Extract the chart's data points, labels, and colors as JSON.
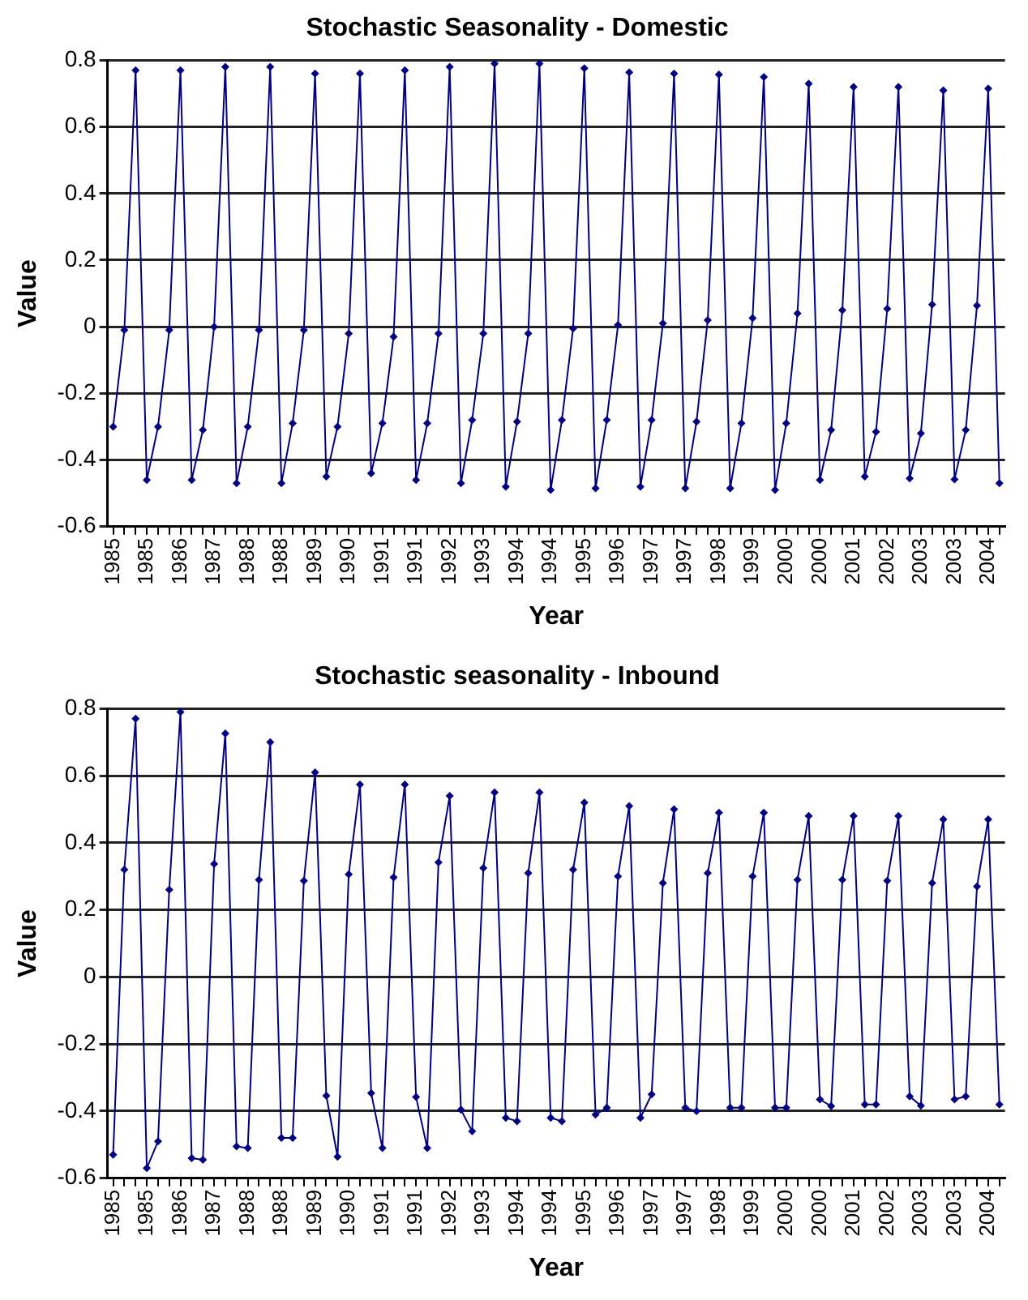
{
  "chart_data": [
    {
      "type": "line",
      "title": "Stochastic Seasonality - Domestic",
      "xlabel": "Year",
      "ylabel": "Value",
      "categories": [
        "1985",
        null,
        null,
        "1985",
        null,
        null,
        "1986",
        null,
        null,
        "1987",
        null,
        null,
        "1988",
        null,
        null,
        "1988",
        null,
        null,
        "1989",
        null,
        null,
        "1990",
        null,
        null,
        "1991",
        null,
        null,
        "1991",
        null,
        null,
        "1992",
        null,
        null,
        "1993",
        null,
        null,
        "1994",
        null,
        null,
        "1994",
        null,
        null,
        "1995",
        null,
        null,
        "1996",
        null,
        null,
        "1997",
        null,
        null,
        "1997",
        null,
        null,
        "1998",
        null,
        null,
        "1999",
        null,
        null,
        "2000",
        null,
        null,
        "2000",
        null,
        null,
        "2001",
        null,
        null,
        "2002",
        null,
        null,
        "2003",
        null,
        null,
        "2003",
        null,
        null,
        "2004",
        null
      ],
      "series": [
        {
          "color": "#000080",
          "values": [
            -0.3,
            -0.01,
            0.77,
            -0.46,
            -0.3,
            -0.01,
            0.77,
            -0.46,
            -0.31,
            0.0,
            0.78,
            -0.47,
            -0.3,
            -0.01,
            0.78,
            -0.47,
            -0.29,
            -0.01,
            0.76,
            -0.45,
            -0.3,
            -0.02,
            0.76,
            -0.44,
            -0.29,
            -0.03,
            0.77,
            -0.46,
            -0.29,
            -0.02,
            0.78,
            -0.47,
            -0.28,
            -0.02,
            0.79,
            -0.48,
            -0.285,
            -0.02,
            0.79,
            -0.49,
            -0.28,
            -0.005,
            0.776,
            -0.485,
            -0.28,
            0.005,
            0.764,
            -0.48,
            -0.28,
            0.01,
            0.76,
            -0.485,
            -0.285,
            0.02,
            0.757,
            -0.485,
            -0.29,
            0.026,
            0.75,
            -0.49,
            -0.29,
            0.04,
            0.73,
            -0.46,
            -0.31,
            0.05,
            0.72,
            -0.45,
            -0.315,
            0.054,
            0.72,
            -0.455,
            -0.32,
            0.067,
            0.71,
            -0.458,
            -0.31,
            0.064,
            0.715,
            -0.47
          ]
        }
      ],
      "ylim": [
        -0.6,
        0.8
      ],
      "yticks": [
        -0.6,
        -0.4,
        -0.2,
        0,
        0.2,
        0.4,
        0.6,
        0.8
      ],
      "grid": "y",
      "marker": "diamond"
    },
    {
      "type": "line",
      "title": "Stochastic seasonality - Inbound",
      "xlabel": "Year",
      "ylabel": "Value",
      "categories": [
        "1985",
        null,
        null,
        "1985",
        null,
        null,
        "1986",
        null,
        null,
        "1987",
        null,
        null,
        "1988",
        null,
        null,
        "1988",
        null,
        null,
        "1989",
        null,
        null,
        "1990",
        null,
        null,
        "1991",
        null,
        null,
        "1991",
        null,
        null,
        "1992",
        null,
        null,
        "1993",
        null,
        null,
        "1994",
        null,
        null,
        "1994",
        null,
        null,
        "1995",
        null,
        null,
        "1996",
        null,
        null,
        "1997",
        null,
        null,
        "1997",
        null,
        null,
        "1998",
        null,
        null,
        "1999",
        null,
        null,
        "2000",
        null,
        null,
        "2000",
        null,
        null,
        "2001",
        null,
        null,
        "2002",
        null,
        null,
        "2003",
        null,
        null,
        "2003",
        null,
        null,
        "2004",
        null
      ],
      "series": [
        {
          "color": "#000080",
          "values": [
            -0.53,
            0.32,
            0.77,
            -0.57,
            -0.49,
            0.26,
            0.79,
            -0.54,
            -0.545,
            0.337,
            0.726,
            -0.505,
            -0.51,
            0.29,
            0.7,
            -0.48,
            -0.48,
            0.287,
            0.61,
            -0.354,
            -0.536,
            0.306,
            0.574,
            -0.346,
            -0.51,
            0.297,
            0.574,
            -0.358,
            -0.51,
            0.342,
            0.54,
            -0.396,
            -0.46,
            0.325,
            0.55,
            -0.42,
            -0.43,
            0.31,
            0.55,
            -0.42,
            -0.43,
            0.32,
            0.52,
            -0.41,
            -0.39,
            0.3,
            0.51,
            -0.42,
            -0.35,
            0.28,
            0.5,
            -0.39,
            -0.4,
            0.31,
            0.49,
            -0.39,
            -0.39,
            0.3,
            0.49,
            -0.39,
            -0.39,
            0.29,
            0.48,
            -0.365,
            -0.385,
            0.29,
            0.48,
            -0.38,
            -0.38,
            0.287,
            0.48,
            -0.356,
            -0.384,
            0.28,
            0.47,
            -0.365,
            -0.356,
            0.27,
            0.47,
            -0.38
          ]
        }
      ],
      "ylim": [
        -0.6,
        0.8
      ],
      "yticks": [
        -0.6,
        -0.4,
        -0.2,
        0,
        0.2,
        0.4,
        0.6,
        0.8
      ],
      "grid": "y",
      "marker": "diamond"
    }
  ]
}
